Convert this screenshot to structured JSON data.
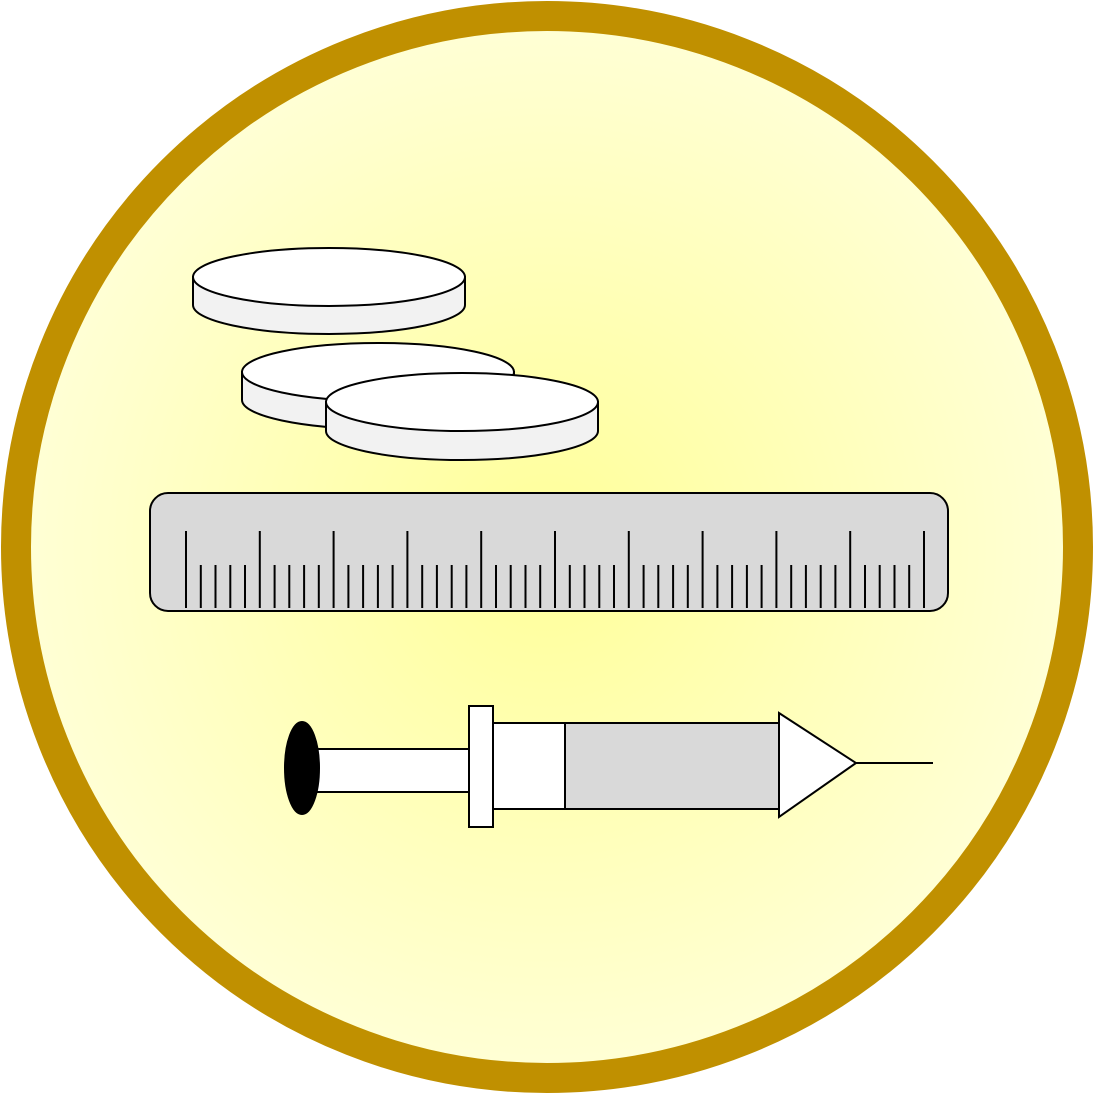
{
  "badge": {
    "icon": "medical-dosage-badge-icon",
    "ring_color": "#c09000",
    "fill_center_color": "#ffff99",
    "fill_edge_color": "#ffffd6"
  },
  "pills": {
    "icon": "pills-icon",
    "top_color": "#ffffff",
    "side_color": "#f2f2f2"
  },
  "ruler": {
    "icon": "ruler-icon",
    "fill_color": "#d9d9d9",
    "major_divisions": 11,
    "minor_per_division": 5
  },
  "syringe": {
    "icon": "syringe-icon",
    "barrel_fill_color": "#d9d9d9",
    "plunger_cap_color": "#000000"
  }
}
